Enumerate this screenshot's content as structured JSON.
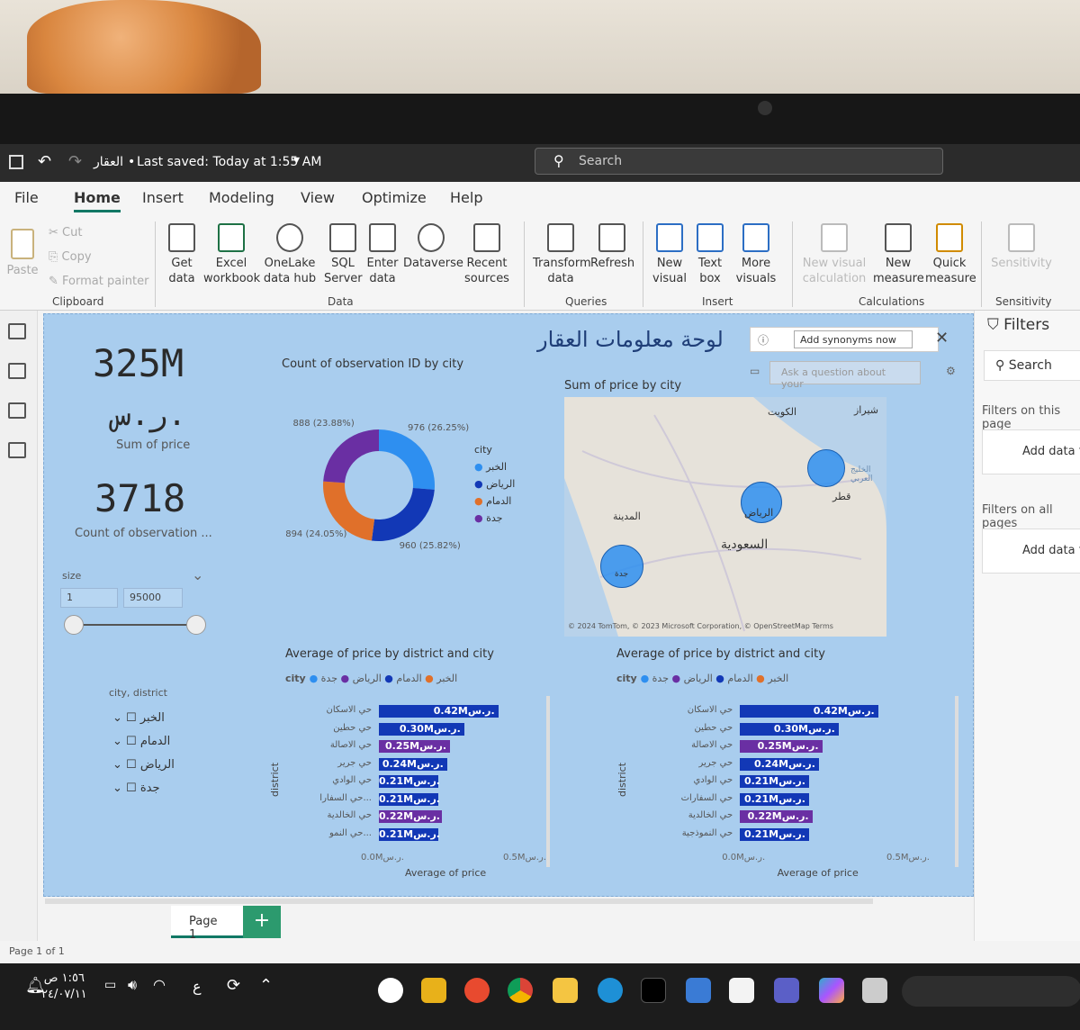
{
  "window": {
    "file_name": "العقار",
    "saved_status": "Last saved: Today at 1:55 AM",
    "search_placeholder": "Search"
  },
  "ribbon_tabs": [
    "File",
    "Home",
    "Insert",
    "Modeling",
    "View",
    "Optimize",
    "Help"
  ],
  "ribbon": {
    "clipboard": {
      "paste": "Paste",
      "cut": "Cut",
      "copy": "Copy",
      "format_painter": "Format painter",
      "group": "Clipboard"
    },
    "data": {
      "get_data": "Get data",
      "excel": "Excel workbook",
      "onelake": "OneLake data hub",
      "sql": "SQL Server",
      "enter": "Enter data",
      "dataverse": "Dataverse",
      "recent": "Recent sources",
      "group": "Data"
    },
    "queries": {
      "transform": "Transform data",
      "refresh": "Refresh",
      "group": "Queries"
    },
    "insert": {
      "new_visual": "New visual",
      "text_box": "Text box",
      "more_visuals": "More visuals",
      "group": "Insert"
    },
    "calculations": {
      "new_visual_calc": "New visual calculation",
      "new_measure": "New measure",
      "quick_measure": "Quick measure",
      "group": "Calculations"
    },
    "sensitivity": {
      "label": "Sensitivity",
      "group": "Sensitivity"
    }
  },
  "report": {
    "title": "لوحة معلومات العقار",
    "kpi_price": "325M",
    "kpi_price_unit": "ر.س.",
    "kpi_price_label": "Sum of price",
    "kpi_count": "3718",
    "kpi_count_label": "Count of observation ...",
    "slicer_size": {
      "label": "size",
      "min": "1",
      "max": "95000"
    },
    "slicer_city": {
      "label": "city, district",
      "items": [
        "الخبر",
        "الدمام",
        "الرياض",
        "جدة"
      ]
    },
    "qa": {
      "add_synonyms": "Add synonyms now",
      "ask_placeholder": "Ask a question about your"
    },
    "map": {
      "title": "Sum of price by city",
      "labels": [
        "الكويت",
        "شيراز",
        "الخليج العربي",
        "قطر",
        "الرياض",
        "المدينة",
        "السعودية",
        "جدة"
      ],
      "attribution": "© 2024 TomTom, © 2023 Microsoft Corporation, © OpenStreetMap Terms"
    }
  },
  "filters": {
    "title": "Filters",
    "search": "Search",
    "on_page": "Filters on this page",
    "on_all": "Filters on all pages",
    "add_data": "Add data fi"
  },
  "page_tab": {
    "label": "Page 1",
    "status": "Page 1 of 1"
  },
  "taskbar": {
    "time": "١:٥٦ ص",
    "date": "٢٤/٠٧/١١",
    "lang": "ع"
  },
  "colors": {
    "khobar": "#2e8ff0",
    "riyadh": "#1238b6",
    "dammam": "#e0702a",
    "jeddah": "#6a2fa3"
  },
  "chart_data": [
    {
      "type": "donut",
      "title": "Count of observation ID by city",
      "legend_title": "city",
      "categories": [
        "الخبر",
        "الرياض",
        "الدمام",
        "جدة"
      ],
      "values": [
        976,
        960,
        894,
        888
      ],
      "labels": [
        "976 (26.25%)",
        "960 (25.82%)",
        "894 (24.05%)",
        "888 (23.88%)"
      ]
    },
    {
      "type": "bar",
      "title": "Average of price by district and city",
      "xlabel": "Average of price",
      "ylabel": "district",
      "legend_title": "city",
      "legend": [
        "الخبر",
        "الدمام",
        "الرياض",
        "جدة"
      ],
      "categories": [
        "حي الاسكان",
        "حي حطين",
        "حي الاصالة",
        "حي جرير",
        "حي الوادي",
        "حي السفارا...",
        "حي الخالدية",
        "حي النمو..."
      ],
      "values": [
        0.42,
        0.3,
        0.25,
        0.24,
        0.21,
        0.21,
        0.22,
        0.21
      ],
      "value_labels": [
        "0.42Mر.س.",
        "0.30Mر.س.",
        "0.25Mر.س.",
        "0.24Mر.س.",
        "0.21Mر.س.",
        "0.21Mر.س.",
        "0.22Mر.س.",
        "0.21Mر.س."
      ],
      "bar_city": [
        "riyadh",
        "riyadh",
        "jeddah",
        "riyadh",
        "riyadh",
        "riyadh",
        "jeddah",
        "riyadh"
      ],
      "xticks": [
        "0.0Mر.س.",
        "0.5Mر.س."
      ],
      "xlim": [
        0,
        0.5
      ]
    },
    {
      "type": "bar",
      "title": "Average of price by district and city",
      "xlabel": "Average of price",
      "ylabel": "district",
      "legend_title": "city",
      "legend": [
        "الخبر",
        "الدمام",
        "الرياض",
        "جدة"
      ],
      "categories": [
        "حي الاسكان",
        "حي حطين",
        "حي الاصالة",
        "حي جرير",
        "حي الوادي",
        "حي السفارات",
        "حي الخالدية",
        "حي النموذجية"
      ],
      "values": [
        0.42,
        0.3,
        0.25,
        0.24,
        0.21,
        0.21,
        0.22,
        0.21
      ],
      "value_labels": [
        "0.42Mر.س.",
        "0.30Mر.س.",
        "0.25Mر.س.",
        "0.24Mر.س.",
        "0.21Mر.س.",
        "0.21Mر.س.",
        "0.22Mر.س.",
        "0.21Mر.س."
      ],
      "bar_city": [
        "riyadh",
        "riyadh",
        "jeddah",
        "riyadh",
        "riyadh",
        "riyadh",
        "jeddah",
        "riyadh"
      ],
      "xticks": [
        "0.0Mر.س.",
        "0.5Mر.س."
      ],
      "xlim": [
        0,
        0.5
      ]
    }
  ]
}
